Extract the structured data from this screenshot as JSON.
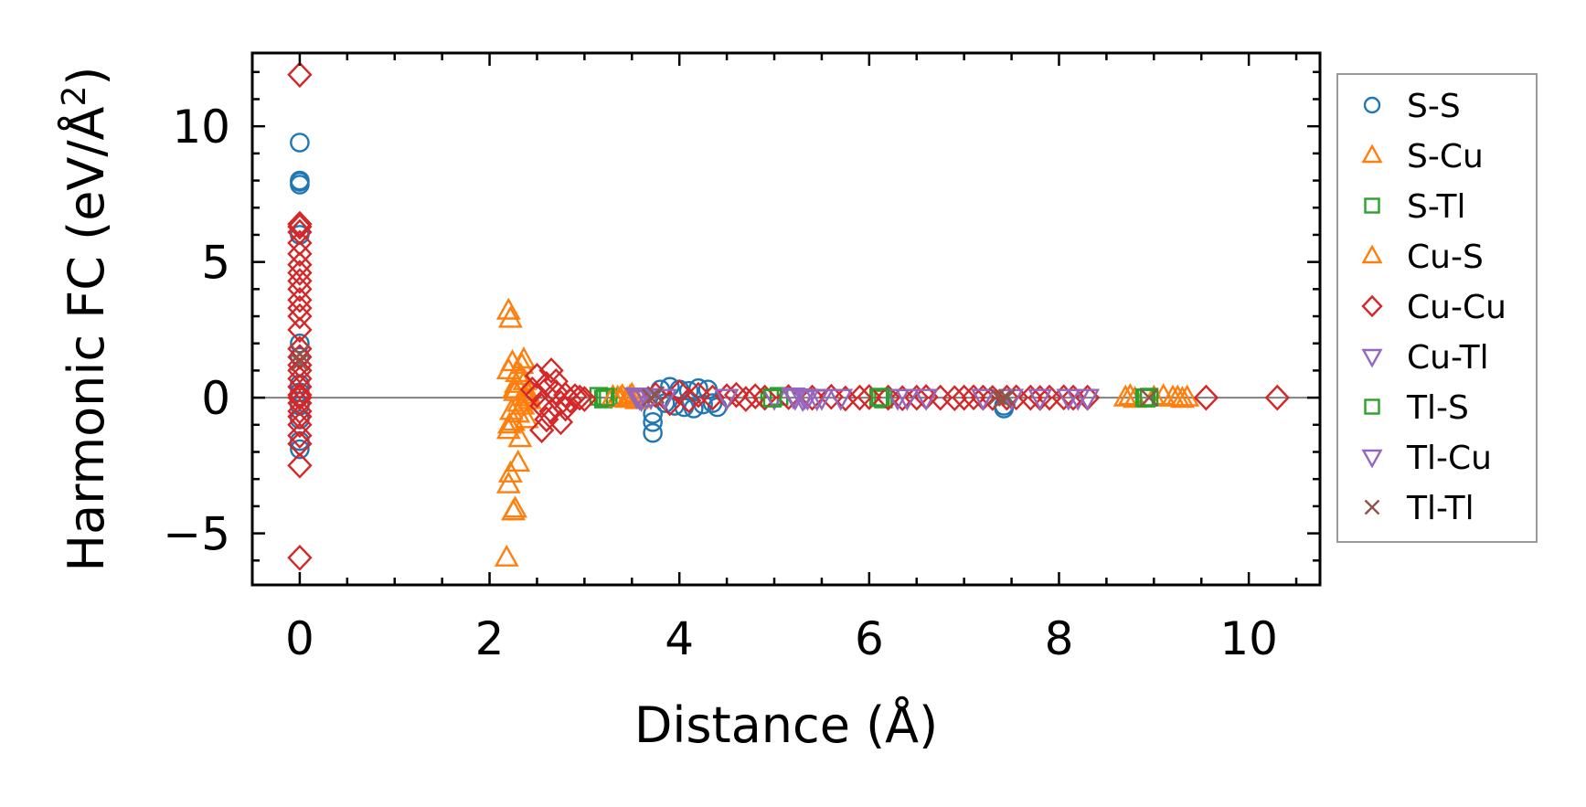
{
  "chart_data": {
    "type": "scatter",
    "title": "",
    "xlabel": "Distance (Å)",
    "ylabel_main": "Harmonic FC (eV/Å",
    "ylabel_sup": "2",
    "ylabel_close": ")",
    "xlim": [
      -0.5,
      10.75
    ],
    "ylim": [
      -6.9,
      12.7
    ],
    "xticks": [
      0,
      2,
      4,
      6,
      8,
      10
    ],
    "xtick_labels": [
      "0",
      "2",
      "4",
      "6",
      "8",
      "10"
    ],
    "yticks": [
      -5,
      0,
      5,
      10
    ],
    "ytick_labels": [
      "−5",
      "0",
      "5",
      "10"
    ],
    "x_minor_step": 0.5,
    "y_minor_step": 1,
    "grid": false,
    "zero_line": true,
    "legend_position": "right",
    "series": [
      {
        "name": "S-S",
        "marker": "circle",
        "filled": false,
        "color": "#1f77b4",
        "x": [
          0,
          0,
          0,
          0,
          0,
          0,
          0,
          0,
          0,
          0,
          0,
          0,
          0,
          3.72,
          3.72,
          3.72,
          3.8,
          3.85,
          3.9,
          3.95,
          4.0,
          4.05,
          4.1,
          4.15,
          4.2,
          4.25,
          4.3,
          4.35,
          4.4,
          7.42,
          7.42
        ],
        "y": [
          9.4,
          8.0,
          7.95,
          7.85,
          6.0,
          2.0,
          1.5,
          0.5,
          0.2,
          -0.3,
          -0.8,
          -1.6,
          -1.9,
          -1.3,
          -0.9,
          -0.6,
          0.3,
          -0.2,
          0.4,
          -0.3,
          0.3,
          -0.35,
          0.25,
          -0.4,
          0.35,
          -0.25,
          0.3,
          -0.2,
          -0.35,
          -0.4,
          -0.3
        ]
      },
      {
        "name": "S-Cu",
        "marker": "triangle-up",
        "filled": false,
        "color": "#ff7f0e",
        "x": [
          2.2,
          2.22,
          2.18,
          2.2,
          2.25,
          2.27,
          2.22,
          2.3,
          2.32,
          2.2,
          2.25,
          2.3,
          2.35,
          2.38,
          2.4,
          2.28,
          2.33,
          2.2,
          2.24,
          2.36,
          2.26,
          2.31,
          2.42,
          3.35,
          3.4,
          3.45,
          3.5,
          3.55,
          8.7,
          8.75,
          8.8,
          9.0,
          9.1,
          9.2,
          9.3,
          9.35
        ],
        "y": [
          3.2,
          2.9,
          -5.9,
          -3.2,
          -4.2,
          -4.1,
          -2.8,
          -2.4,
          -1.5,
          -1.2,
          -0.9,
          -0.6,
          -0.3,
          0.0,
          0.2,
          0.5,
          0.8,
          1.0,
          1.3,
          1.4,
          0.3,
          -0.2,
          -0.1,
          0.0,
          0.05,
          -0.05,
          0.1,
          -0.1,
          0,
          0.05,
          -0.05,
          0,
          0.05,
          0,
          -0.05,
          0
        ]
      },
      {
        "name": "S-Tl",
        "marker": "square",
        "filled": false,
        "color": "#2ca02c",
        "x": [
          3.15,
          3.2,
          3.25,
          4.95,
          5.05,
          6.1,
          6.15,
          8.9,
          8.95
        ],
        "y": [
          0.05,
          -0.05,
          0.0,
          0.0,
          0.05,
          0.0,
          -0.05,
          0.0,
          0.02
        ]
      },
      {
        "name": "Cu-S",
        "marker": "triangle-up",
        "filled": false,
        "color": "#ff7f0e",
        "x": [
          2.21,
          2.23,
          2.27,
          2.29,
          2.34,
          2.37,
          2.39,
          2.41,
          3.3,
          3.38,
          3.48,
          9.25
        ],
        "y": [
          -1.0,
          -0.5,
          0.2,
          0.9,
          1.2,
          0.6,
          -0.8,
          0.1,
          0.02,
          -0.03,
          0.03,
          0.0
        ]
      },
      {
        "name": "Cu-Cu",
        "marker": "diamond",
        "filled": false,
        "color": "#d62728",
        "x": [
          0,
          0,
          0,
          0,
          0,
          0,
          0,
          0,
          0,
          0,
          0,
          0,
          0,
          0,
          0,
          0,
          0,
          0,
          0,
          0,
          0,
          0,
          0,
          0,
          0,
          0,
          0,
          0,
          0,
          0,
          2.45,
          2.5,
          2.55,
          2.6,
          2.65,
          2.7,
          2.75,
          2.8,
          2.85,
          2.9,
          2.95,
          3.0,
          2.5,
          2.6,
          2.7,
          2.8,
          2.55,
          2.65,
          2.75,
          3.75,
          3.9,
          4.0,
          4.1,
          4.2,
          4.35,
          4.5,
          4.6,
          4.7,
          4.8,
          4.9,
          5.15,
          5.4,
          5.6,
          5.75,
          5.9,
          6.0,
          6.2,
          6.35,
          6.5,
          6.6,
          6.75,
          6.9,
          7.0,
          7.1,
          7.2,
          7.3,
          7.45,
          7.55,
          7.7,
          7.8,
          7.9,
          8.05,
          8.15,
          8.3,
          9.55,
          10.3
        ],
        "y": [
          11.9,
          6.4,
          6.3,
          6.1,
          5.7,
          5.3,
          4.9,
          4.6,
          4.3,
          4.0,
          3.6,
          3.3,
          3.0,
          2.5,
          1.8,
          1.5,
          1.2,
          1.0,
          0.7,
          0.4,
          0.1,
          -0.2,
          -0.5,
          -0.7,
          -1.0,
          -1.4,
          -1.7,
          -2.5,
          -5.9,
          0.0,
          0.3,
          0.1,
          -0.3,
          0.5,
          -0.5,
          0.2,
          -0.2,
          0.1,
          -0.1,
          0.05,
          0.0,
          -0.05,
          0.8,
          -0.8,
          0.6,
          -0.4,
          -1.2,
          1.0,
          -0.9,
          0.1,
          -0.2,
          0.2,
          -0.1,
          0.1,
          0.0,
          0.05,
          0.1,
          -0.05,
          0.05,
          0.0,
          0.02,
          0.0,
          0.03,
          -0.03,
          0.0,
          0.02,
          0.0,
          -0.02,
          0.0,
          0.02,
          0.0,
          -0.02,
          0.0,
          0.01,
          0.0,
          -0.01,
          0.0,
          0.01,
          0.0,
          -0.01,
          0.0,
          0.01,
          0.0,
          0.0,
          0.0,
          0.0
        ]
      },
      {
        "name": "Cu-Tl",
        "marker": "triangle-down",
        "filled": false,
        "color": "#9467bd",
        "x": [
          3.55,
          3.6,
          3.7,
          3.85,
          4.5,
          5.0,
          5.2,
          5.3,
          5.35,
          5.5,
          5.7,
          6.3,
          6.6,
          7.2,
          7.8,
          8.1,
          8.3
        ],
        "y": [
          0.05,
          -0.05,
          0.02,
          0.0,
          0.0,
          0.0,
          0.05,
          -0.05,
          0.0,
          0.0,
          0.0,
          0.0,
          0.0,
          0.0,
          0.0,
          0.0,
          0.0
        ]
      },
      {
        "name": "Tl-S",
        "marker": "square",
        "filled": false,
        "color": "#2ca02c",
        "x": [
          3.22,
          4.98,
          6.12,
          8.92
        ],
        "y": [
          0.02,
          -0.02,
          0.02,
          -0.02
        ]
      },
      {
        "name": "Tl-Cu",
        "marker": "triangle-down",
        "filled": false,
        "color": "#9467bd",
        "x": [
          3.58,
          3.65,
          5.22,
          5.32,
          5.45,
          6.4,
          7.5,
          8.2
        ],
        "y": [
          0.0,
          0.03,
          0.0,
          0.02,
          -0.02,
          0.0,
          0.0,
          0.0
        ]
      },
      {
        "name": "Tl-Tl",
        "marker": "x",
        "filled": false,
        "color": "#8c564b",
        "x": [
          0,
          0,
          3.7,
          3.75,
          7.35,
          7.4,
          7.45,
          8.95
        ],
        "y": [
          1.6,
          1.3,
          0.0,
          0.1,
          0.05,
          -0.05,
          0.0,
          0.0
        ]
      }
    ]
  }
}
